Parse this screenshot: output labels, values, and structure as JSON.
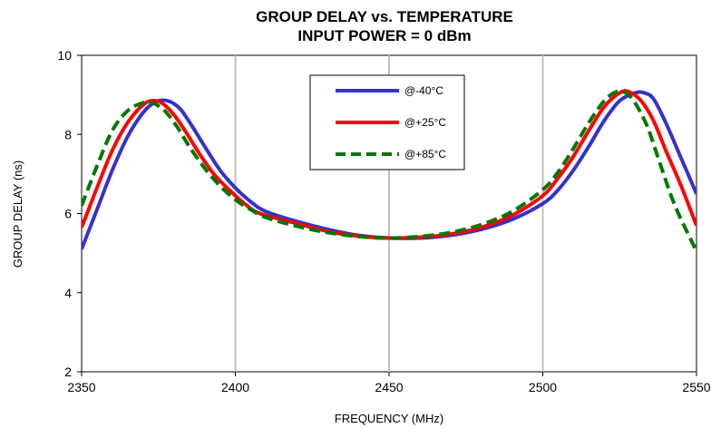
{
  "chart_data": {
    "type": "line",
    "title": "GROUP DELAY vs. TEMPERATURE",
    "subtitle": "INPUT POWER = 0 dBm",
    "xlabel": "FREQUENCY (MHz)",
    "ylabel": "GROUP DELAY (ns)",
    "xlim": [
      2350,
      2550
    ],
    "ylim": [
      2,
      10
    ],
    "xticks": [
      2350,
      2400,
      2450,
      2500,
      2550
    ],
    "yticks": [
      2,
      4,
      6,
      8,
      10
    ],
    "grid": "vertical",
    "legend_position": "top-right",
    "series": [
      {
        "name": "@-40°C",
        "color": "#3333cc",
        "dash": "solid",
        "x": [
          2350,
          2355,
          2360,
          2365,
          2370,
          2374,
          2378,
          2382,
          2386,
          2390,
          2395,
          2400,
          2405,
          2410,
          2420,
          2430,
          2440,
          2450,
          2460,
          2470,
          2480,
          2490,
          2500,
          2505,
          2510,
          2515,
          2520,
          2525,
          2530,
          2533,
          2536,
          2540,
          2545,
          2550
        ],
        "y": [
          5.1,
          6.1,
          7.1,
          7.95,
          8.55,
          8.82,
          8.85,
          8.65,
          8.2,
          7.7,
          7.1,
          6.65,
          6.3,
          6.05,
          5.8,
          5.6,
          5.45,
          5.38,
          5.38,
          5.45,
          5.6,
          5.85,
          6.25,
          6.6,
          7.1,
          7.7,
          8.35,
          8.85,
          9.05,
          9.05,
          8.9,
          8.3,
          7.4,
          6.5
        ]
      },
      {
        "name": "@+25°C",
        "color": "#ff0000",
        "dash": "solid",
        "x": [
          2350,
          2355,
          2360,
          2365,
          2370,
          2373,
          2376,
          2380,
          2384,
          2388,
          2393,
          2398,
          2403,
          2408,
          2420,
          2430,
          2440,
          2450,
          2460,
          2470,
          2480,
          2490,
          2500,
          2505,
          2510,
          2515,
          2520,
          2525,
          2528,
          2532,
          2536,
          2540,
          2545,
          2550
        ],
        "y": [
          5.65,
          6.65,
          7.6,
          8.3,
          8.75,
          8.85,
          8.8,
          8.5,
          8.05,
          7.55,
          7.0,
          6.6,
          6.25,
          6.0,
          5.75,
          5.55,
          5.43,
          5.38,
          5.4,
          5.48,
          5.65,
          5.95,
          6.45,
          6.9,
          7.45,
          8.1,
          8.7,
          9.05,
          9.08,
          8.85,
          8.35,
          7.6,
          6.7,
          5.7
        ]
      },
      {
        "name": "@+85°C",
        "color": "#007700",
        "dash": "dashed",
        "x": [
          2350,
          2355,
          2360,
          2365,
          2370,
          2373,
          2377,
          2381,
          2385,
          2390,
          2395,
          2400,
          2405,
          2410,
          2420,
          2430,
          2440,
          2450,
          2460,
          2470,
          2480,
          2490,
          2500,
          2505,
          2510,
          2515,
          2520,
          2524,
          2527,
          2530,
          2534,
          2538,
          2543,
          2550
        ],
        "y": [
          6.2,
          7.2,
          8.1,
          8.6,
          8.8,
          8.8,
          8.6,
          8.2,
          7.7,
          7.15,
          6.7,
          6.35,
          6.1,
          5.9,
          5.68,
          5.52,
          5.42,
          5.38,
          5.42,
          5.52,
          5.72,
          6.05,
          6.6,
          7.05,
          7.65,
          8.3,
          8.85,
          9.08,
          9.05,
          8.8,
          8.2,
          7.3,
          6.2,
          5.05
        ]
      }
    ]
  }
}
